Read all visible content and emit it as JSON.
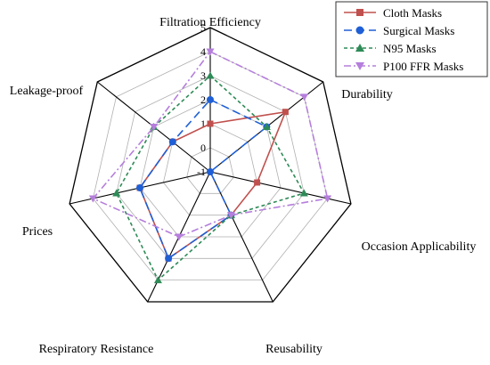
{
  "chart_data": {
    "type": "radar",
    "axes": [
      "Filtration Efficiency",
      "Durability",
      "Occasion Applicability",
      "Reusability",
      "Respiratory Resistance",
      "Prices",
      "Leakage-proof"
    ],
    "rlim": [
      -1,
      5
    ],
    "ticks": [
      -1,
      0,
      1,
      2,
      3,
      4,
      5
    ],
    "grid": true,
    "legend_position": "top-right",
    "series": [
      {
        "name": "Cloth Masks",
        "color": "#c0504d",
        "marker": "square",
        "dash": "solid",
        "values": [
          1,
          3,
          1,
          1,
          3,
          2,
          1
        ]
      },
      {
        "name": "Surgical Masks",
        "color": "#1f5fd6",
        "marker": "circle",
        "dash": "longdash",
        "values": [
          2,
          2,
          -1,
          1,
          3,
          2,
          1
        ]
      },
      {
        "name": "N95 Masks",
        "color": "#2e8b57",
        "marker": "triangle-up",
        "dash": "dashed",
        "values": [
          3,
          2,
          3,
          1,
          4,
          3,
          2
        ]
      },
      {
        "name": "P100 FFR Masks",
        "color": "#b57edc",
        "marker": "triangle-down",
        "dash": "dashdot",
        "values": [
          4,
          4,
          4,
          1,
          2,
          4,
          2
        ]
      }
    ]
  }
}
